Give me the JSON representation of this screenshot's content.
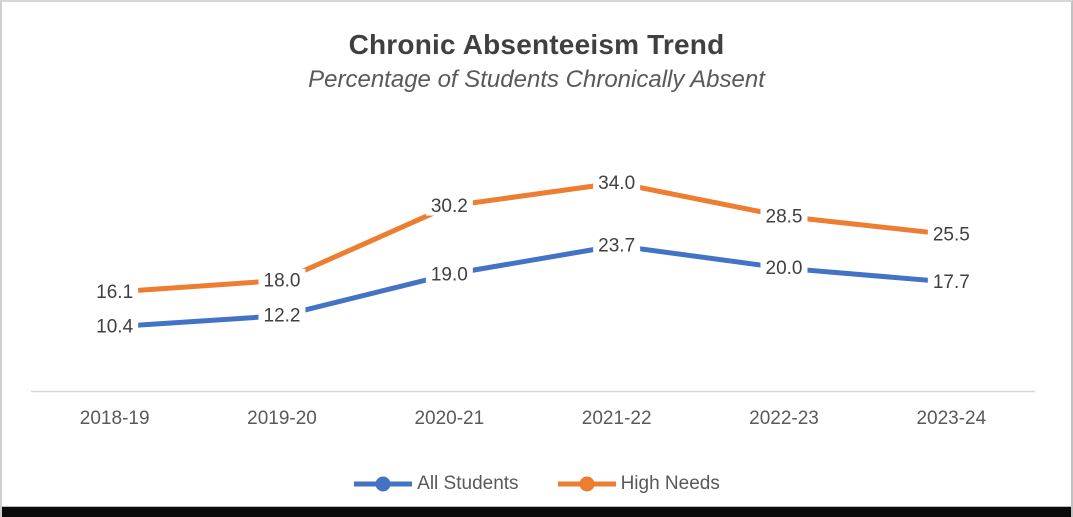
{
  "chart_data": {
    "type": "line",
    "title": "Chronic Absenteeism Trend",
    "subtitle": "Percentage of Students Chronically Absent",
    "categories": [
      "2018-19",
      "2019-20",
      "2020-21",
      "2021-22",
      "2022-23",
      "2023-24"
    ],
    "series": [
      {
        "name": "All Students",
        "color": "#4472C4",
        "values": [
          10.4,
          12.2,
          19.0,
          23.7,
          20.0,
          17.7
        ]
      },
      {
        "name": "High Needs",
        "color": "#ED7D31",
        "values": [
          16.1,
          18.0,
          30.2,
          34.0,
          28.5,
          25.5
        ]
      }
    ],
    "data_labels": [
      "10.4",
      "12.2",
      "19.0",
      "23.7",
      "20.0",
      "17.7",
      "16.1",
      "18.0",
      "30.2",
      "34.0",
      "28.5",
      "25.5"
    ],
    "data_label_format": "one_decimal",
    "ylim": [
      0,
      44
    ],
    "y_axis_visible": false,
    "gridlines": false,
    "legend_position": "bottom",
    "colors": {
      "title": "#404040",
      "subtitle": "#595959",
      "data_label": "#404040",
      "tick_label": "#595959",
      "axis_line": "#D9D9D9",
      "label_background": "#FFFFFF"
    }
  }
}
